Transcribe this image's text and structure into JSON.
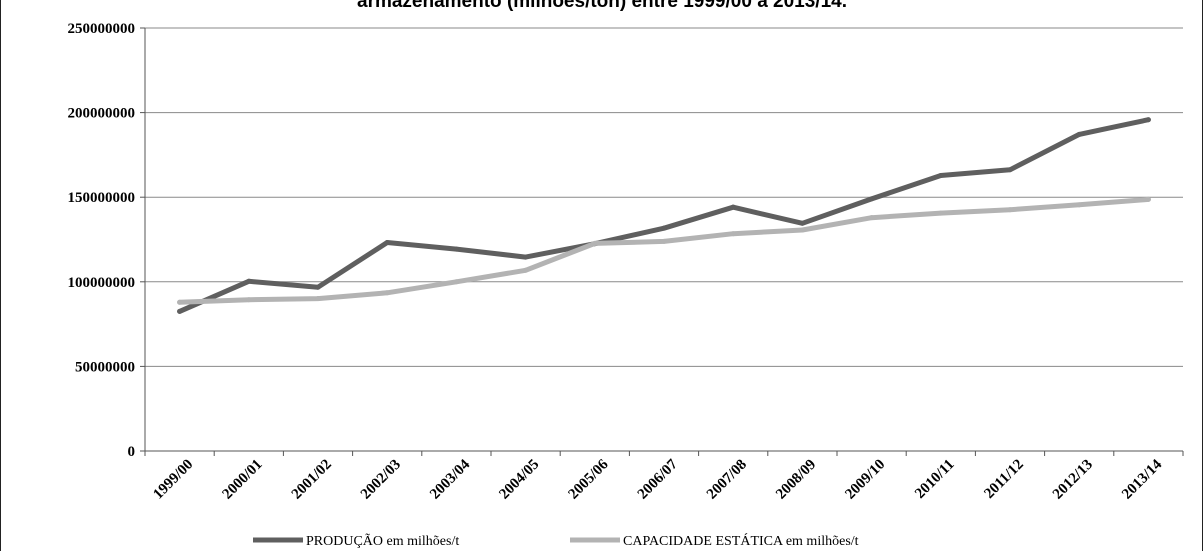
{
  "title": "armazenamento (milhões/ton) entre 1999/00 a 2013/14.",
  "chart_data": {
    "type": "line",
    "title": "armazenamento (milhões/ton) entre 1999/00 a 2013/14.",
    "xlabel": "",
    "ylabel": "",
    "ylim": [
      0,
      250000000
    ],
    "yticks": [
      0,
      50000000,
      100000000,
      150000000,
      200000000,
      250000000
    ],
    "ytick_labels": [
      "0",
      "50000000",
      "100000000",
      "150000000",
      "200000000",
      "250000000"
    ],
    "grid": true,
    "legend_position": "bottom",
    "categories": [
      "1999/00",
      "2000/01",
      "2001/02",
      "2002/03",
      "2003/04",
      "2004/05",
      "2005/06",
      "2006/07",
      "2007/08",
      "2008/09",
      "2009/10",
      "2010/11",
      "2011/12",
      "2012/13",
      "2013/14"
    ],
    "series": [
      {
        "name": "PRODUÇÃO em milhões/t",
        "color": "#5f5f5f",
        "values": [
          82500000,
          100300000,
          96800000,
          123200000,
          119300000,
          114600000,
          122500000,
          131700000,
          144100000,
          134600000,
          149000000,
          162800000,
          166200000,
          187100000,
          195800000
        ]
      },
      {
        "name": "CAPACIDADE ESTÁTICA em milhões/t",
        "color": "#b3b3b3",
        "values": [
          87900000,
          89400000,
          90100000,
          93500000,
          100000000,
          106800000,
          122700000,
          123900000,
          128400000,
          130600000,
          137900000,
          140600000,
          142600000,
          145500000,
          148700000
        ]
      }
    ]
  }
}
